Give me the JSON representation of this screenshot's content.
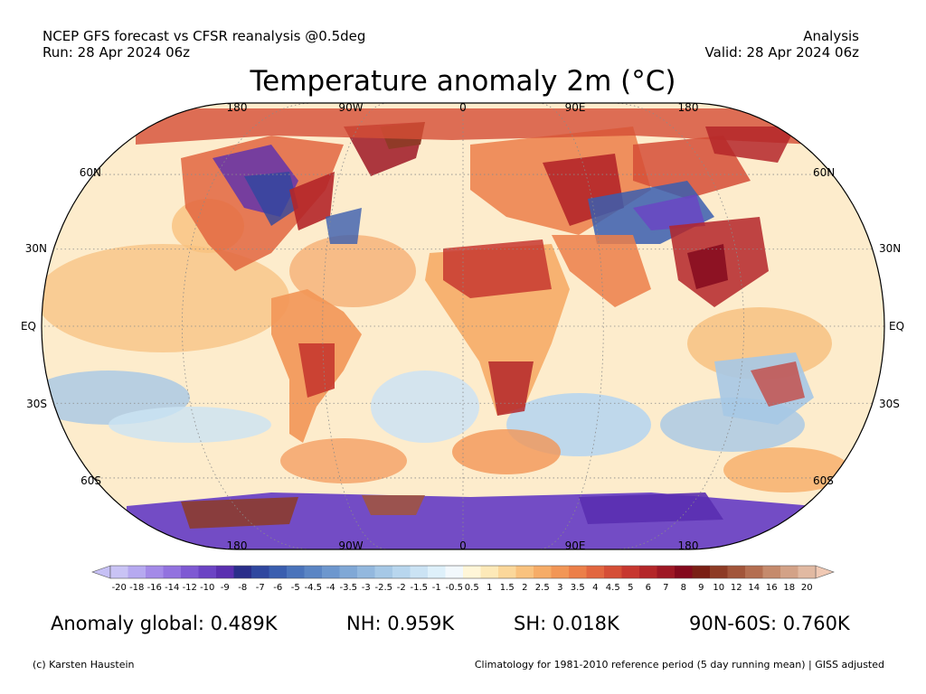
{
  "header": {
    "left_line1": "NCEP GFS forecast vs CFSR reanalysis @0.5deg",
    "left_line2": "Run: 28 Apr 2024 06z",
    "right_line1": "Analysis",
    "right_line2": "Valid: 28 Apr 2024 06z",
    "title": "Temperature anomaly 2m (°C)"
  },
  "map": {
    "lon_labels_top": [
      "180",
      "90W",
      "0",
      "90E",
      "180"
    ],
    "lon_labels_bottom": [
      "180",
      "90W",
      "0",
      "90E",
      "180"
    ],
    "lat_labels_left": [
      "60N",
      "30N",
      "EQ",
      "30S",
      "60S"
    ],
    "lat_labels_right": [
      "60N",
      "30N",
      "EQ",
      "30S",
      "60S"
    ],
    "projection": "Robinson",
    "ocean_fill": "#fdeccc",
    "outline": "#000000"
  },
  "colorbar": {
    "labels": [
      "-20",
      "-18",
      "-16",
      "-14",
      "-12",
      "-10",
      "-9",
      "-8",
      "-7",
      "-6",
      "-5",
      "-4.5",
      "-4",
      "-3.5",
      "-3",
      "-2.5",
      "-2",
      "-1.5",
      "-1",
      "-0.5",
      "0.5",
      "1",
      "1.5",
      "2",
      "2.5",
      "3",
      "3.5",
      "4",
      "4.5",
      "5",
      "6",
      "7",
      "8",
      "9",
      "10",
      "12",
      "14",
      "16",
      "18",
      "20"
    ],
    "colors": [
      "#c9c3f5",
      "#b6a9f0",
      "#a48ae8",
      "#9272df",
      "#7e59d3",
      "#6b43c4",
      "#5a2fb0",
      "#2a2e8a",
      "#2f479f",
      "#3a5eaf",
      "#4a73bb",
      "#5b85c4",
      "#6d97ce",
      "#80a8d6",
      "#93b8de",
      "#a6c8e6",
      "#b8d6ee",
      "#cbe3f4",
      "#def0fa",
      "#f2f8fc",
      "#fff6d8",
      "#fde9b8",
      "#fbd79a",
      "#f9c27e",
      "#f6ac67",
      "#f29656",
      "#ec7f49",
      "#e2663f",
      "#d54e36",
      "#c7372f",
      "#b42629",
      "#9e1724",
      "#84091d",
      "#7a1f14",
      "#8d3b25",
      "#a2553a",
      "#b46e51",
      "#c58a6c",
      "#d3a287",
      "#e1b9a2"
    ],
    "min_color": "#c6c0f5",
    "max_color": "#f0c9b4"
  },
  "stats": {
    "global": "Anomaly global: 0.489K",
    "nh": "NH: 0.959K",
    "sh": "SH: 0.018K",
    "arctic": "90N-60S: 0.760K"
  },
  "footer": {
    "credit": "(c) Karsten Haustein",
    "note": "Climatology for 1981-2010 reference period (5 day running mean) | GISS adjusted"
  }
}
